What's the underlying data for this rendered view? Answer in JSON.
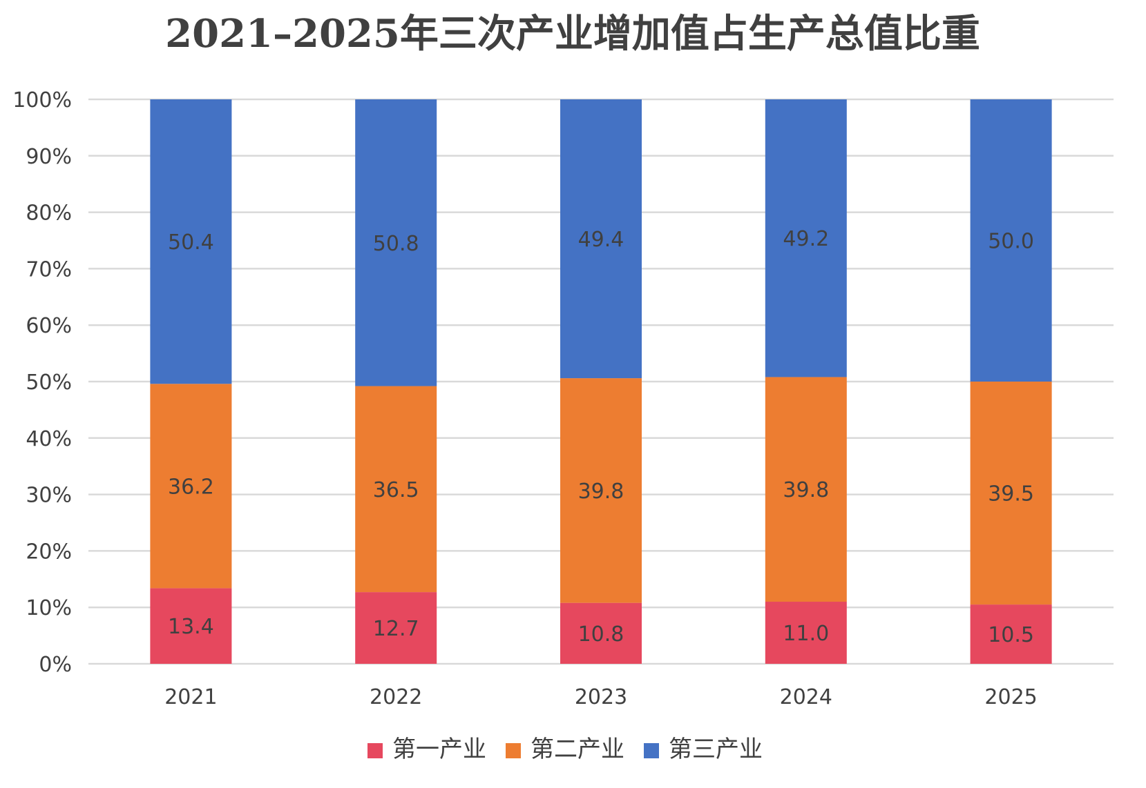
{
  "chart_data": {
    "type": "bar",
    "stacked": true,
    "percent": true,
    "title": "2021–2025年三次产业增加值占生产总值比重",
    "categories": [
      "2021",
      "2022",
      "2023",
      "2024",
      "2025"
    ],
    "series": [
      {
        "name": "第一产业",
        "color": "#E6485E",
        "values": [
          13.4,
          12.7,
          10.8,
          11.0,
          10.5
        ]
      },
      {
        "name": "第二产业",
        "color": "#ED7D31",
        "values": [
          36.2,
          36.5,
          39.8,
          39.8,
          39.5
        ]
      },
      {
        "name": "第三产业",
        "color": "#4472C4",
        "values": [
          50.4,
          50.8,
          49.4,
          49.2,
          50.0
        ]
      }
    ],
    "ylim": [
      0,
      100
    ],
    "yticks": [
      "0%",
      "10%",
      "20%",
      "30%",
      "40%",
      "50%",
      "60%",
      "70%",
      "80%",
      "90%",
      "100%"
    ],
    "xlabel": "",
    "ylabel": "",
    "grid": true,
    "legend": "bottom",
    "colors": {
      "gridline": "#D9D9D9",
      "text": "#404040"
    }
  }
}
